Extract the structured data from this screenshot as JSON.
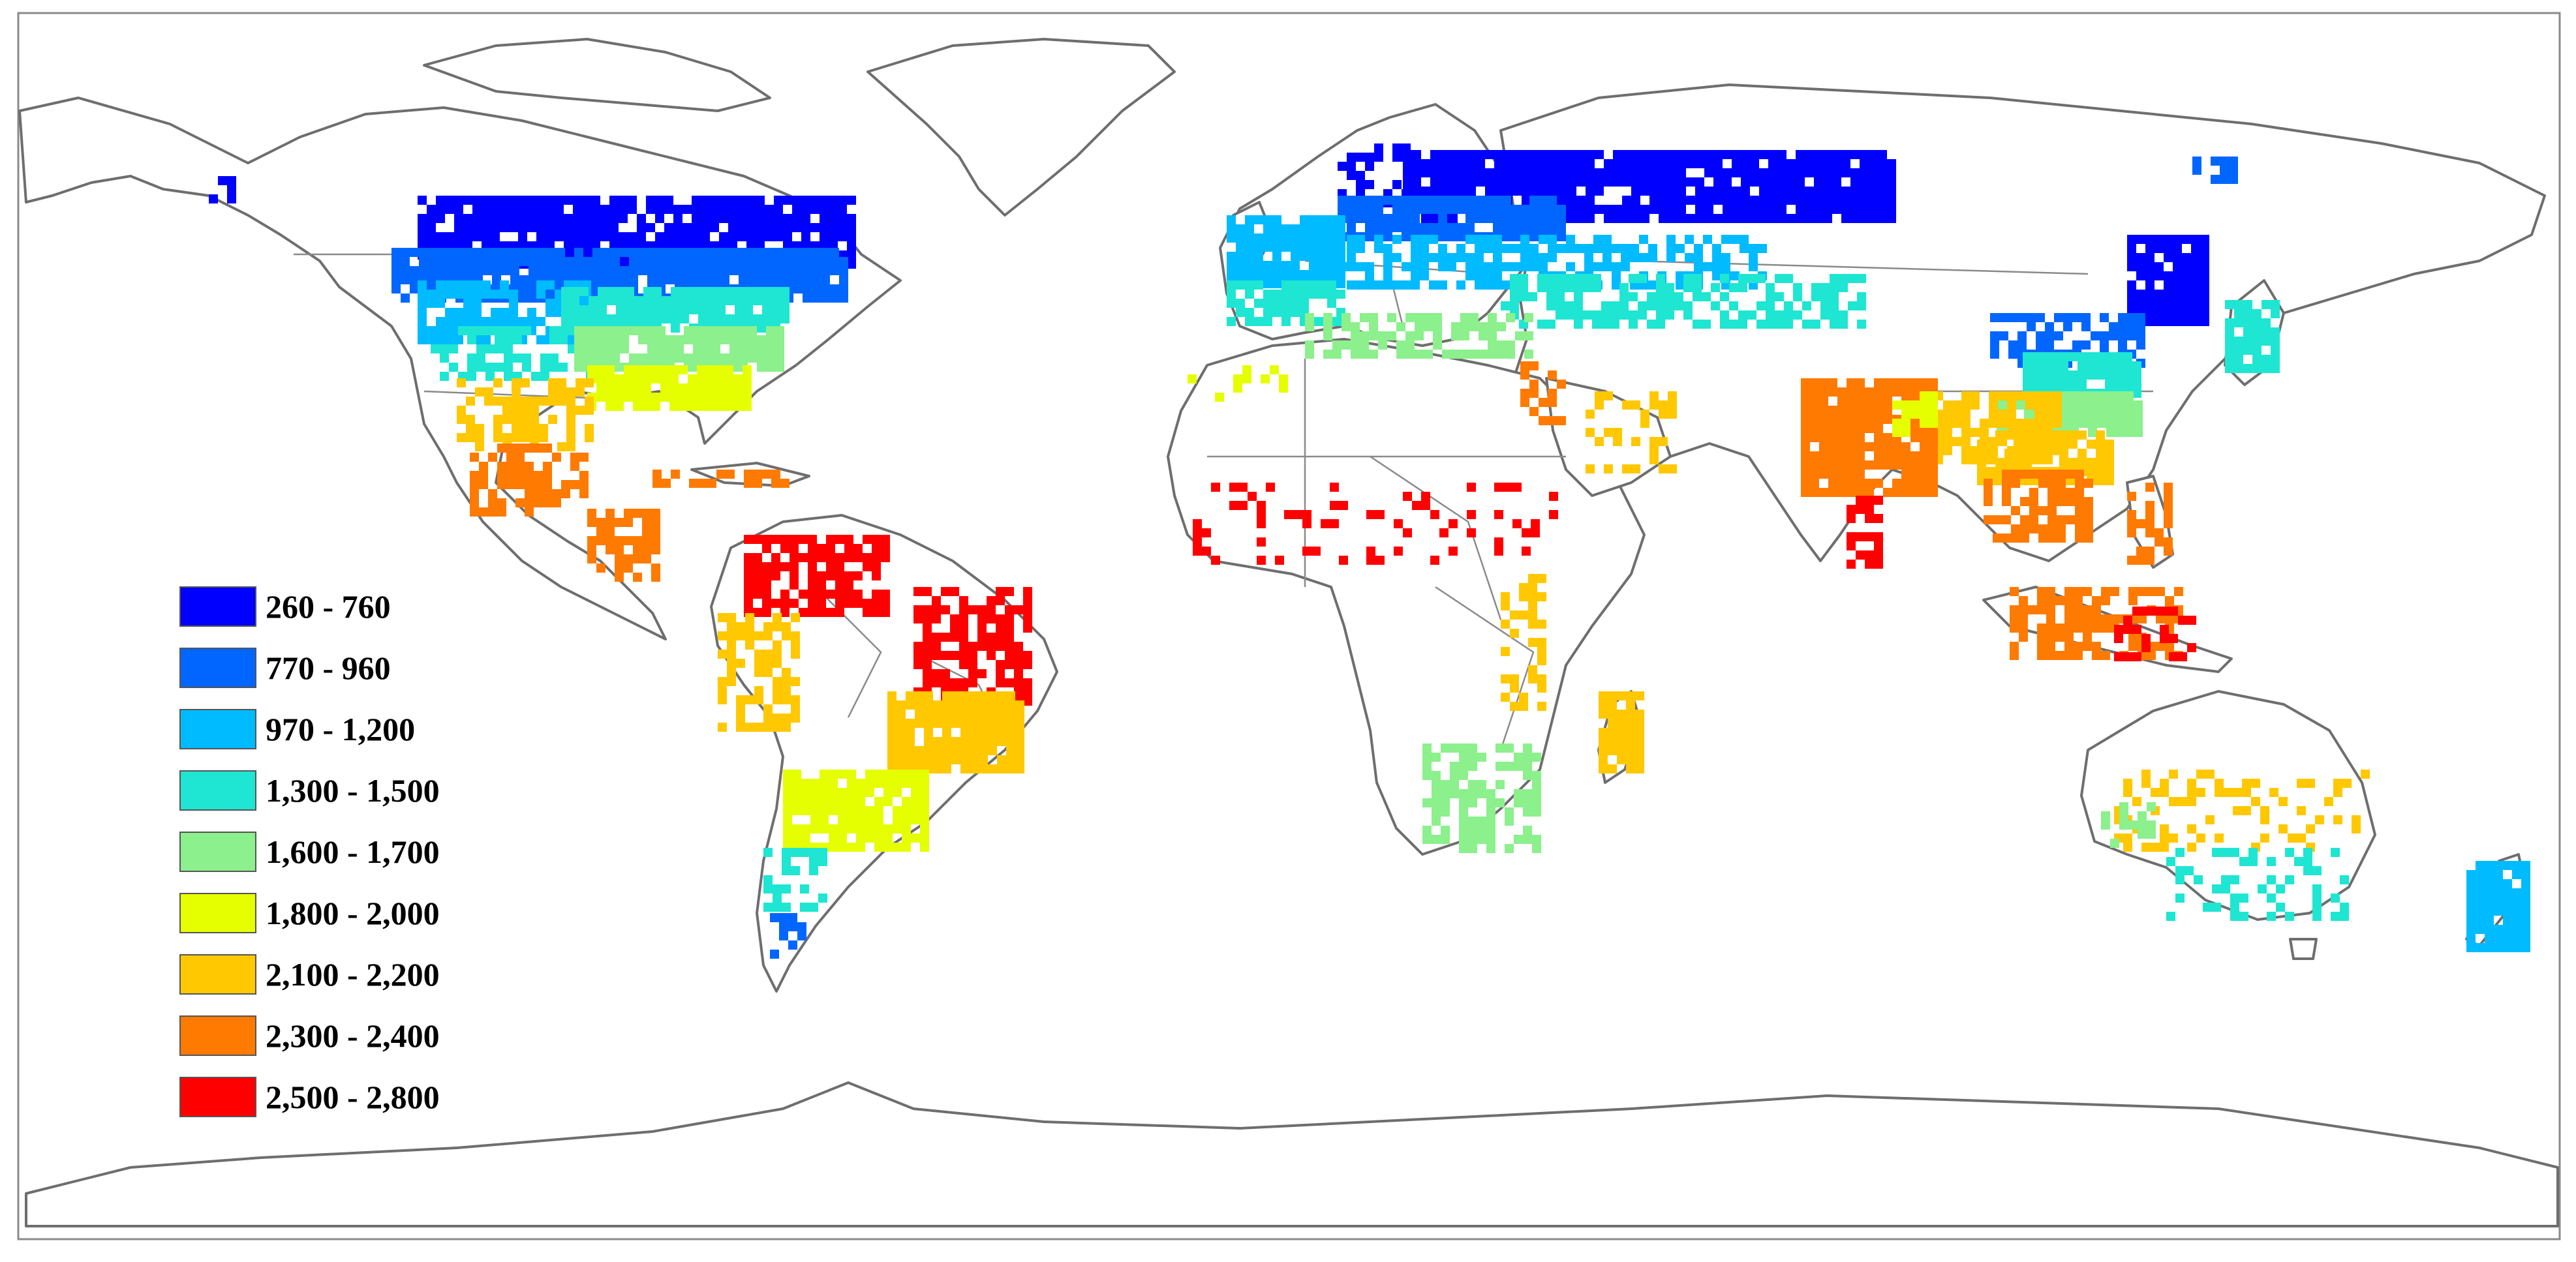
{
  "legend": {
    "classes": [
      {
        "label": "260 - 760",
        "color": "#0000ff"
      },
      {
        "label": "770 - 960",
        "color": "#0066ff"
      },
      {
        "label": "970 - 1,200",
        "color": "#00bbff"
      },
      {
        "label": "1,300 - 1,500",
        "color": "#1ee6d2"
      },
      {
        "label": "1,600 - 1,700",
        "color": "#8cf08c"
      },
      {
        "label": "1,800 - 2,000",
        "color": "#e6ff00"
      },
      {
        "label": "2,100 - 2,200",
        "color": "#ffc800"
      },
      {
        "label": "2,300 - 2,400",
        "color": "#ff7a00"
      },
      {
        "label": "2,500 - 2,800",
        "color": "#ff0000"
      }
    ]
  },
  "map": {
    "outline_color": "#6e6e6e",
    "background_color": "#ffffff"
  }
}
